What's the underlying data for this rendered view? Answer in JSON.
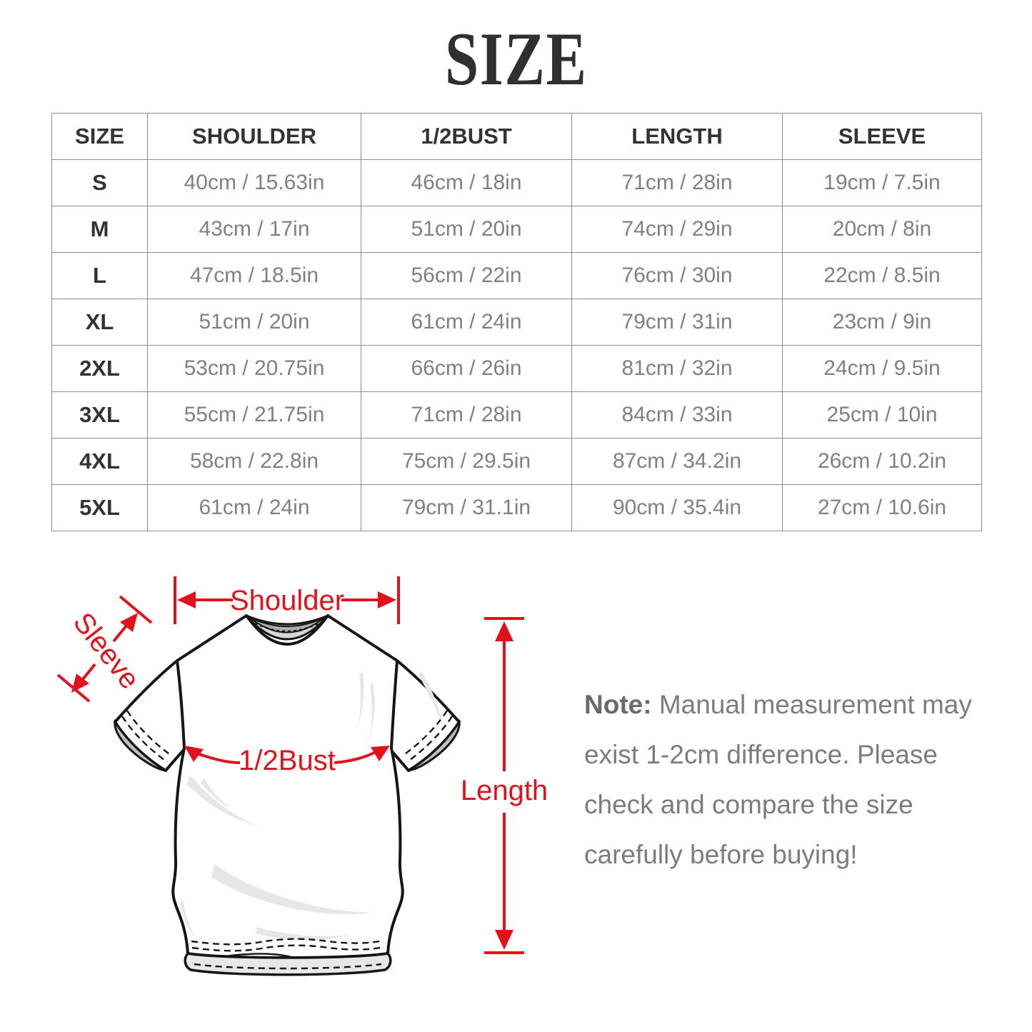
{
  "title": "SIZE",
  "table": {
    "headers": [
      "SIZE",
      "SHOULDER",
      "1/2BUST",
      "LENGTH",
      "SLEEVE"
    ],
    "rows": [
      [
        "S",
        "40cm / 15.63in",
        "46cm / 18in",
        "71cm / 28in",
        "19cm / 7.5in"
      ],
      [
        "M",
        "43cm / 17in",
        "51cm / 20in",
        "74cm / 29in",
        "20cm / 8in"
      ],
      [
        "L",
        "47cm / 18.5in",
        "56cm / 22in",
        "76cm / 30in",
        "22cm / 8.5in"
      ],
      [
        "XL",
        "51cm / 20in",
        "61cm / 24in",
        "79cm / 31in",
        "23cm / 9in"
      ],
      [
        "2XL",
        "53cm / 20.75in",
        "66cm / 26in",
        "81cm / 32in",
        "24cm / 9.5in"
      ],
      [
        "3XL",
        "55cm / 21.75in",
        "71cm / 28in",
        "84cm / 33in",
        "25cm / 10in"
      ],
      [
        "4XL",
        "58cm / 22.8in",
        "75cm / 29.5in",
        "87cm / 34.2in",
        "26cm / 10.2in"
      ],
      [
        "5XL",
        "61cm / 24in",
        "79cm / 31.1in",
        "90cm / 35.4in",
        "27cm / 10.6in"
      ]
    ]
  },
  "diagram": {
    "labels": {
      "shoulder": "Shoulder",
      "sleeve": "Sleeve",
      "bust": "1/2Bust",
      "length": "Length"
    }
  },
  "note": {
    "label": "Note:",
    "lines": [
      "Manual measurement may",
      "exist 1-2cm difference. Please",
      "check and compare the size",
      "carefully before buying!"
    ]
  },
  "colors": {
    "accent": "#e1121b",
    "title": "#303030",
    "header_text": "#333333",
    "data_text": "#808080",
    "border": "#8c8c8c",
    "note_text": "#7c7c7c",
    "note_label": "#6a6a6a"
  }
}
